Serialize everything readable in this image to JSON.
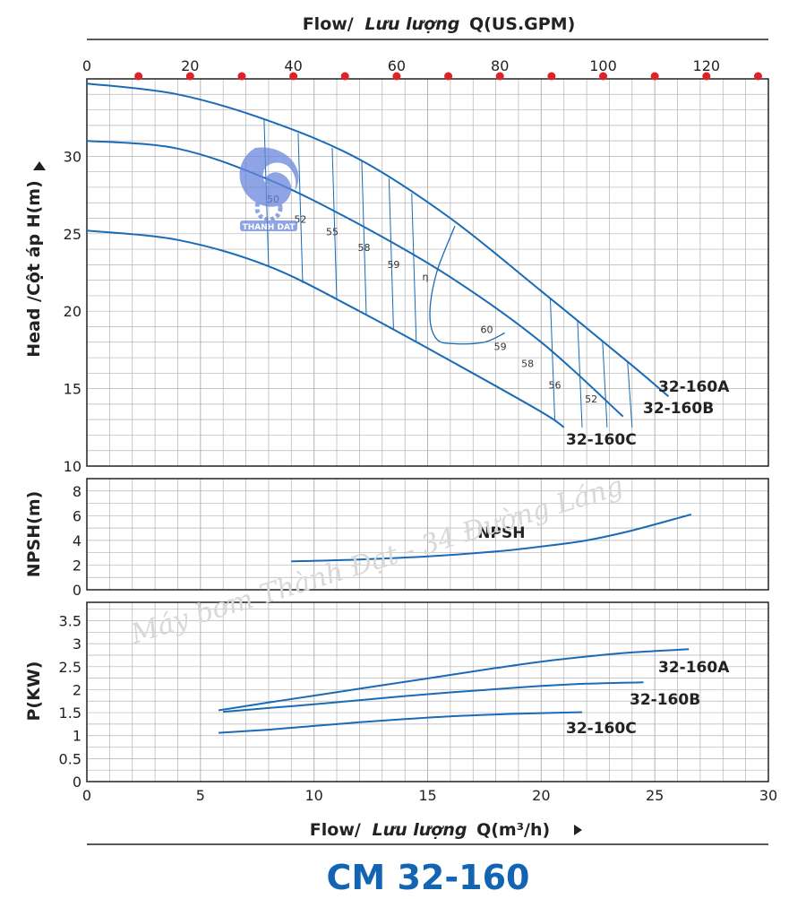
{
  "title": "CM 32-160",
  "top_axis_title": {
    "en": "Flow/",
    "vi": "Lưu lượng",
    "unit": "Q(US.GPM)"
  },
  "bottom_axis_title": {
    "en": "Flow/",
    "vi": "Lưu lượng",
    "unit": "Q(m³/h)"
  },
  "watermark": "Máy bơm Thành Đạt - 34 Đường Láng",
  "logo_text": "THANH DAT",
  "colors": {
    "curve": "#1a6bb5",
    "grid": "#b3b3b3",
    "marker": "#e0202a",
    "title": "#1464b4"
  },
  "chart_data": [
    {
      "type": "line",
      "name": "head",
      "ylabel": "Head /Cột áp H(m)",
      "xlim": [
        0,
        30
      ],
      "ylim": [
        10,
        35
      ],
      "x2label": "Flow/ Lưu lượng Q(US.GPM)",
      "x2lim": [
        0,
        132
      ],
      "x2ticks": [
        0,
        20,
        40,
        60,
        80,
        100,
        120
      ],
      "x2markers": [
        10,
        20,
        30,
        40,
        50,
        60,
        70,
        80,
        90,
        100,
        110,
        120,
        130
      ],
      "yticks": [
        10,
        15,
        20,
        25,
        30
      ],
      "grid": true,
      "series": [
        {
          "name": "32-160A",
          "x": [
            0,
            4,
            8,
            12,
            16,
            20,
            24,
            25.6
          ],
          "y": [
            34.7,
            34.0,
            32.3,
            29.8,
            26.0,
            21.3,
            16.5,
            14.5
          ]
        },
        {
          "name": "32-160B",
          "x": [
            0,
            4,
            8,
            12,
            16,
            20,
            23.6
          ],
          "y": [
            31.0,
            30.5,
            28.5,
            25.6,
            22.2,
            18.0,
            13.2
          ]
        },
        {
          "name": "32-160C",
          "x": [
            0,
            4,
            8,
            12,
            16,
            20,
            21.0
          ],
          "y": [
            25.2,
            24.6,
            22.9,
            20.0,
            16.8,
            13.5,
            12.5
          ]
        }
      ],
      "efficiency_labels": [
        "50",
        "52",
        "55",
        "58",
        "59",
        "η",
        "60",
        "59",
        "58",
        "56",
        "52"
      ]
    },
    {
      "type": "line",
      "name": "npsh",
      "ylabel": "NPSH(m)",
      "xlim": [
        0,
        30
      ],
      "ylim": [
        0,
        9
      ],
      "yticks": [
        0,
        2,
        4,
        6,
        8
      ],
      "grid": true,
      "series": [
        {
          "name": "NPSH",
          "x": [
            9,
            12,
            15,
            18,
            20,
            22,
            24,
            26.6
          ],
          "y": [
            2.3,
            2.45,
            2.7,
            3.1,
            3.5,
            4.0,
            4.8,
            6.1
          ]
        }
      ]
    },
    {
      "type": "line",
      "name": "power",
      "ylabel": "P(KW)",
      "xlabel": "Flow/ Lưu lượng Q(m³/h)",
      "xlim": [
        0,
        30
      ],
      "ylim": [
        0,
        3.9
      ],
      "xticks": [
        0,
        5,
        10,
        15,
        20,
        25,
        30
      ],
      "yticks": [
        0,
        0.5,
        1,
        1.5,
        2,
        2.5,
        3,
        3.5
      ],
      "grid": true,
      "series": [
        {
          "name": "32-160A",
          "x": [
            5.8,
            8,
            10,
            12,
            14,
            16,
            18,
            20,
            22,
            24,
            26.5
          ],
          "y": [
            1.55,
            1.72,
            1.87,
            2.02,
            2.17,
            2.32,
            2.47,
            2.61,
            2.72,
            2.81,
            2.88
          ]
        },
        {
          "name": "32-160B",
          "x": [
            6,
            8,
            10,
            12,
            14,
            16,
            18,
            20,
            22,
            24.5
          ],
          "y": [
            1.52,
            1.6,
            1.68,
            1.77,
            1.86,
            1.94,
            2.01,
            2.08,
            2.13,
            2.16
          ]
        },
        {
          "name": "32-160C",
          "x": [
            5.8,
            8,
            10,
            12,
            14,
            16,
            18,
            20,
            21.8
          ],
          "y": [
            1.06,
            1.13,
            1.21,
            1.29,
            1.36,
            1.42,
            1.46,
            1.49,
            1.51
          ]
        }
      ]
    }
  ]
}
